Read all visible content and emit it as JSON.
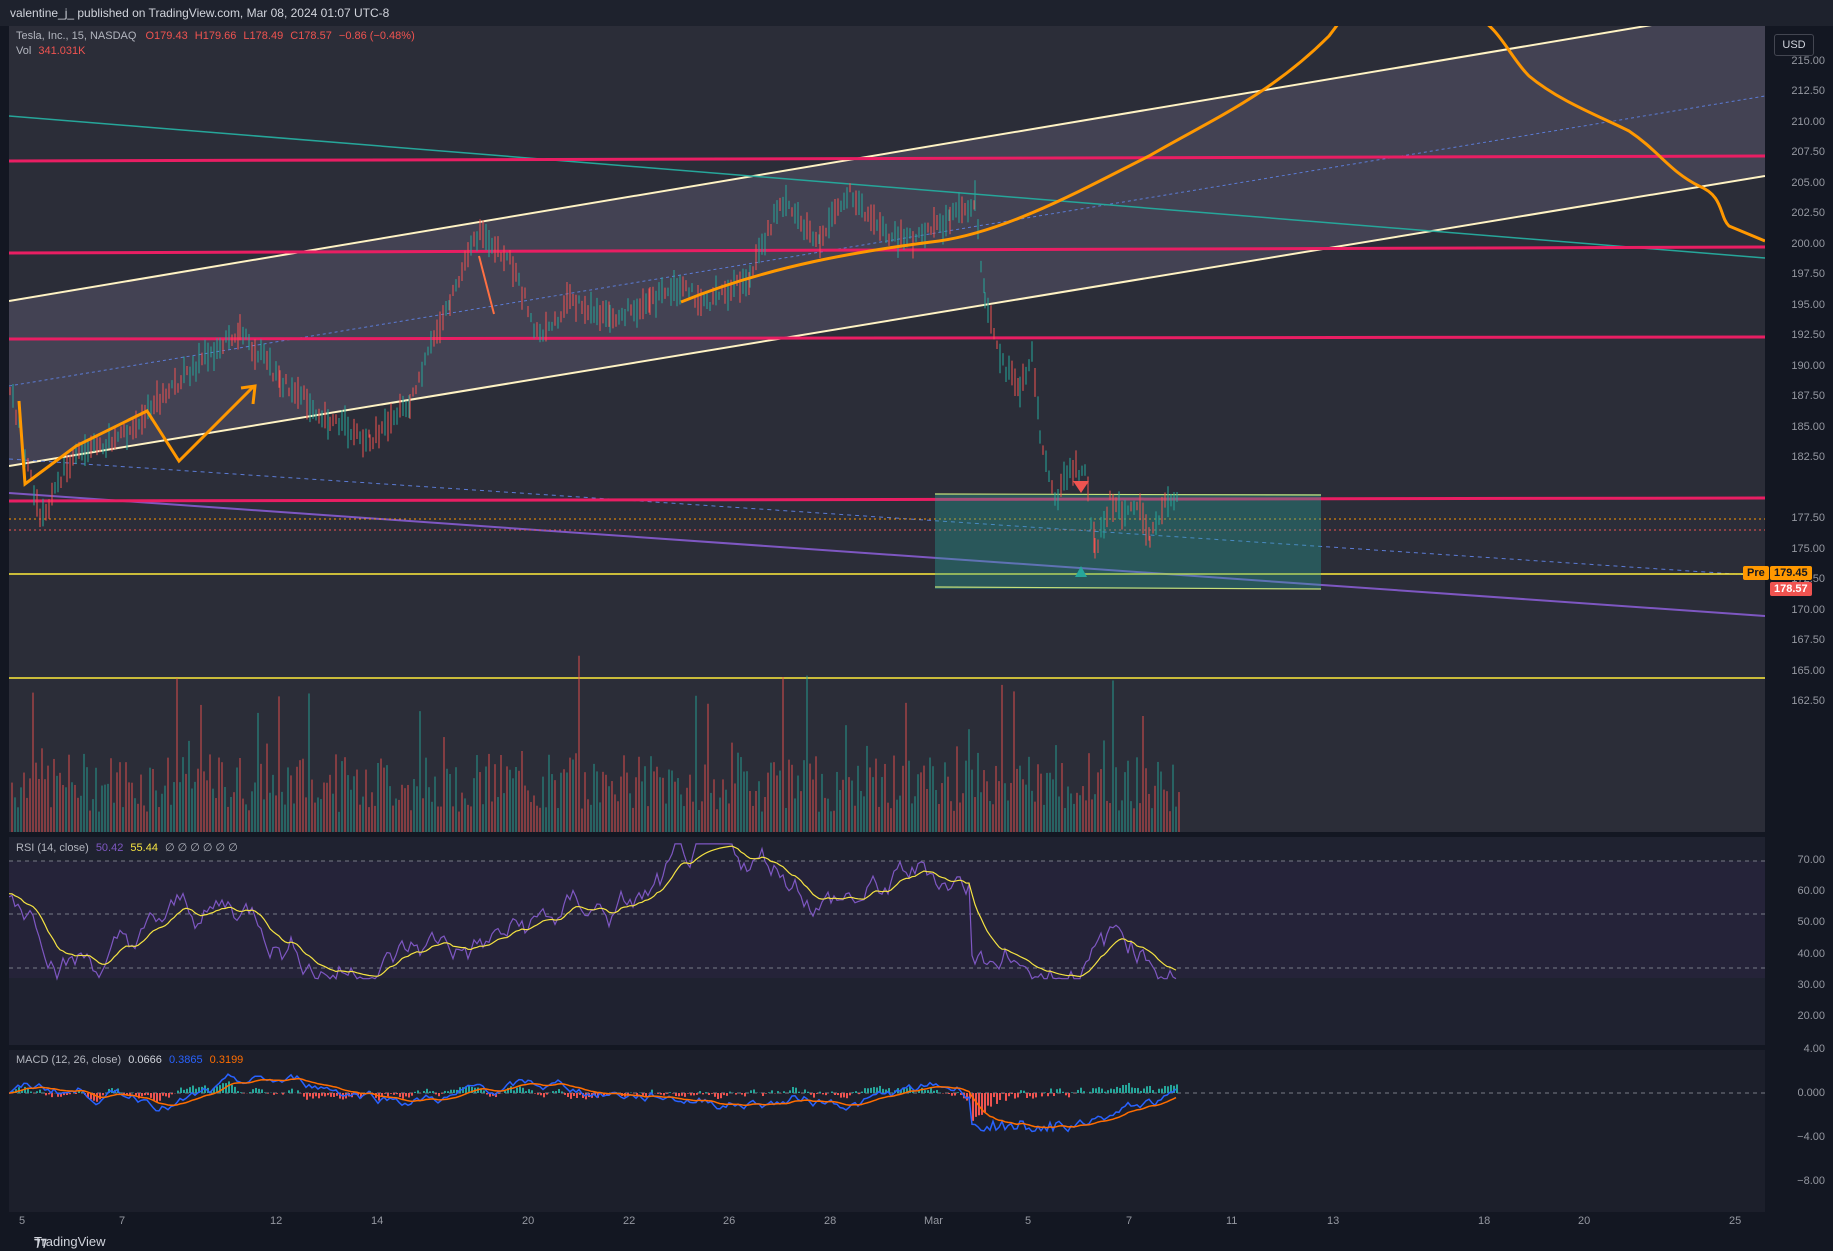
{
  "publish_line": "valentine_j_ published on TradingView.com, Mar 08, 2024 01:07 UTC-8",
  "legend": {
    "symbol": "Tesla, Inc., 15, NASDAQ",
    "o": "O179.43",
    "h": "H179.66",
    "l": "L178.49",
    "c": "C178.57",
    "chg": "−0.86 (−0.48%)",
    "vol_label": "Vol",
    "vol_value": "341.031K"
  },
  "rsi_legend": {
    "label": "RSI (14, close)",
    "v1": "50.42",
    "v2": "55.44",
    "rest": "∅ ∅ ∅ ∅ ∅ ∅"
  },
  "macd_legend": {
    "label": "MACD (12, 26, close)",
    "v1": "0.0666",
    "v2": "0.3865",
    "v3": "0.3199"
  },
  "currency": "USD",
  "price_ticks": [
    "215.00",
    "212.50",
    "210.00",
    "207.50",
    "205.00",
    "202.50",
    "200.00",
    "197.50",
    "195.00",
    "192.50",
    "190.00",
    "187.50",
    "185.00",
    "182.50",
    "177.50",
    "175.00",
    "172.50",
    "170.00",
    "167.50",
    "165.00",
    "162.50"
  ],
  "rsi_ticks": [
    "70.00",
    "60.00",
    "50.00",
    "40.00",
    "30.00",
    "20.00"
  ],
  "macd_ticks": [
    "4.00",
    "0.000",
    "−4.00",
    "−8.00"
  ],
  "pre_label": "Pre",
  "pre_price": "179.45",
  "last_price": "178.57",
  "time_ticks": [
    "5",
    "7",
    "12",
    "14",
    "20",
    "22",
    "26",
    "28",
    "Mar",
    "5",
    "7",
    "11",
    "13",
    "18",
    "20",
    "25"
  ],
  "footer_brand": "TradingView",
  "colors": {
    "pink": "#e91e63",
    "orange": "#ff9800",
    "yellow": "#ffeb3b",
    "teal": "#26a69a",
    "red_candle": "#ef5350",
    "purple": "#7e57c2",
    "rsi_line": "#7e57c2",
    "rsi_ma": "#f5e342",
    "macd_line": "#2962ff",
    "signal_line": "#ff6d00"
  }
}
